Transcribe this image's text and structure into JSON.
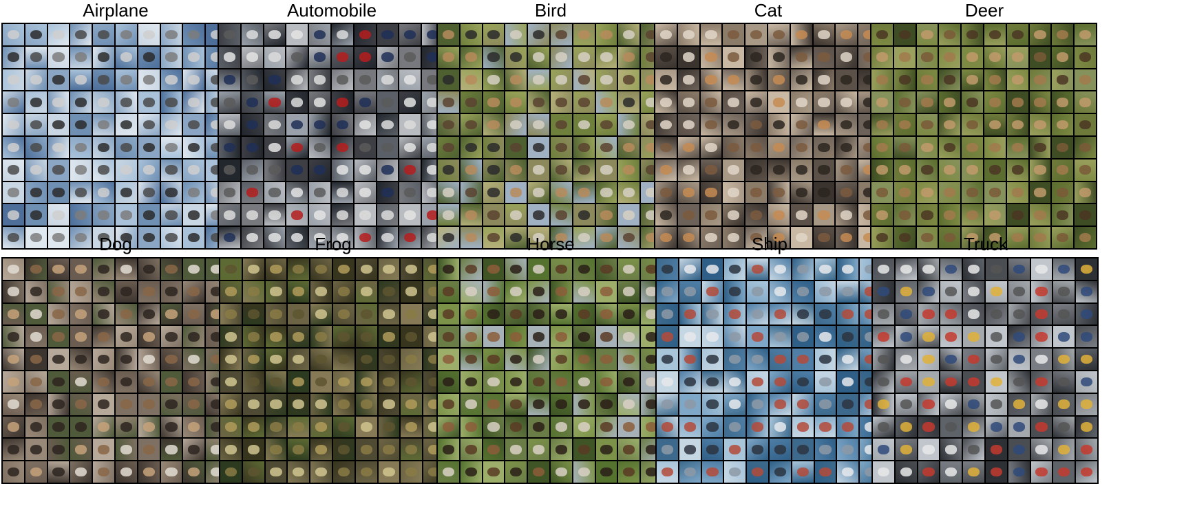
{
  "panels": [
    {
      "title": "Airplane",
      "palette": {
        "bg": [
          "#6f8fb3",
          "#a9c2da",
          "#dfe7ef",
          "#4d6f9a",
          "#8aa6c4",
          "#c9d6e3"
        ],
        "obj": [
          "#2b2b2b",
          "#7d7d7d",
          "#cfcfcf",
          "#4a4a4a"
        ]
      }
    },
    {
      "title": "Automobile",
      "palette": {
        "bg": [
          "#3d3f45",
          "#77797e",
          "#b9bcc1",
          "#22262d",
          "#5b6068",
          "#9aa1aa"
        ],
        "obj": [
          "#b51d1d",
          "#dcdcdc",
          "#1f2f57",
          "#5a5a5a",
          "#e4e4e4"
        ]
      }
    },
    {
      "title": "Bird",
      "palette": {
        "bg": [
          "#6f7f3c",
          "#99a35a",
          "#4e6030",
          "#b5b07a",
          "#8c8a5d",
          "#a0b1c4"
        ],
        "obj": [
          "#5a4330",
          "#2a2a2a",
          "#b78b5c",
          "#d6d0c3"
        ]
      }
    },
    {
      "title": "Cat",
      "palette": {
        "bg": [
          "#5c5148",
          "#8b7b69",
          "#3a332e",
          "#a89886",
          "#6d6259",
          "#c9b8a3"
        ],
        "obj": [
          "#c58b52",
          "#2c2620",
          "#e0d6c8",
          "#7b5a3e"
        ]
      }
    },
    {
      "title": "Deer",
      "palette": {
        "bg": [
          "#5b6d2f",
          "#7d8a43",
          "#3f4d24",
          "#9aa05d",
          "#6e7a3a",
          "#86925b"
        ],
        "obj": [
          "#7a5a38",
          "#a27a4c",
          "#4b3623",
          "#c19a6b"
        ]
      }
    },
    {
      "title": "Dog",
      "palette": {
        "bg": [
          "#6a5c50",
          "#988877",
          "#3d352f",
          "#b7a99a",
          "#7e7062",
          "#4f5a3a"
        ],
        "obj": [
          "#c5a27a",
          "#2d2520",
          "#e2dcd2",
          "#8a6647"
        ]
      }
    },
    {
      "title": "Frog",
      "palette": {
        "bg": [
          "#4f4a33",
          "#6c6444",
          "#38351f",
          "#857a55",
          "#2c3a1f",
          "#5d6a34"
        ],
        "obj": [
          "#8a7b45",
          "#b09b5a",
          "#5e5530",
          "#d0c48f"
        ]
      }
    },
    {
      "title": "Horse",
      "palette": {
        "bg": [
          "#55722f",
          "#7c9248",
          "#3f5526",
          "#9cae6a",
          "#6b7d47",
          "#a7b2b8"
        ],
        "obj": [
          "#5a3b25",
          "#2a1f18",
          "#8c5d3a",
          "#d8d0c4"
        ]
      }
    },
    {
      "title": "Ship",
      "palette": {
        "bg": [
          "#4f7ea6",
          "#7fa7c7",
          "#2f5f86",
          "#a9c5da",
          "#3d6a8c",
          "#c6d7e4"
        ],
        "obj": [
          "#e6e9ec",
          "#2b3440",
          "#b44a3a",
          "#8d99a6"
        ]
      }
    },
    {
      "title": "Truck",
      "palette": {
        "bg": [
          "#4a4d52",
          "#7a7e84",
          "#2d3035",
          "#a4a9ae",
          "#5e636a",
          "#c0c6cc"
        ],
        "obj": [
          "#c43a2e",
          "#e8e8e8",
          "#2f4a7a",
          "#e0b23a",
          "#555555"
        ]
      }
    }
  ]
}
